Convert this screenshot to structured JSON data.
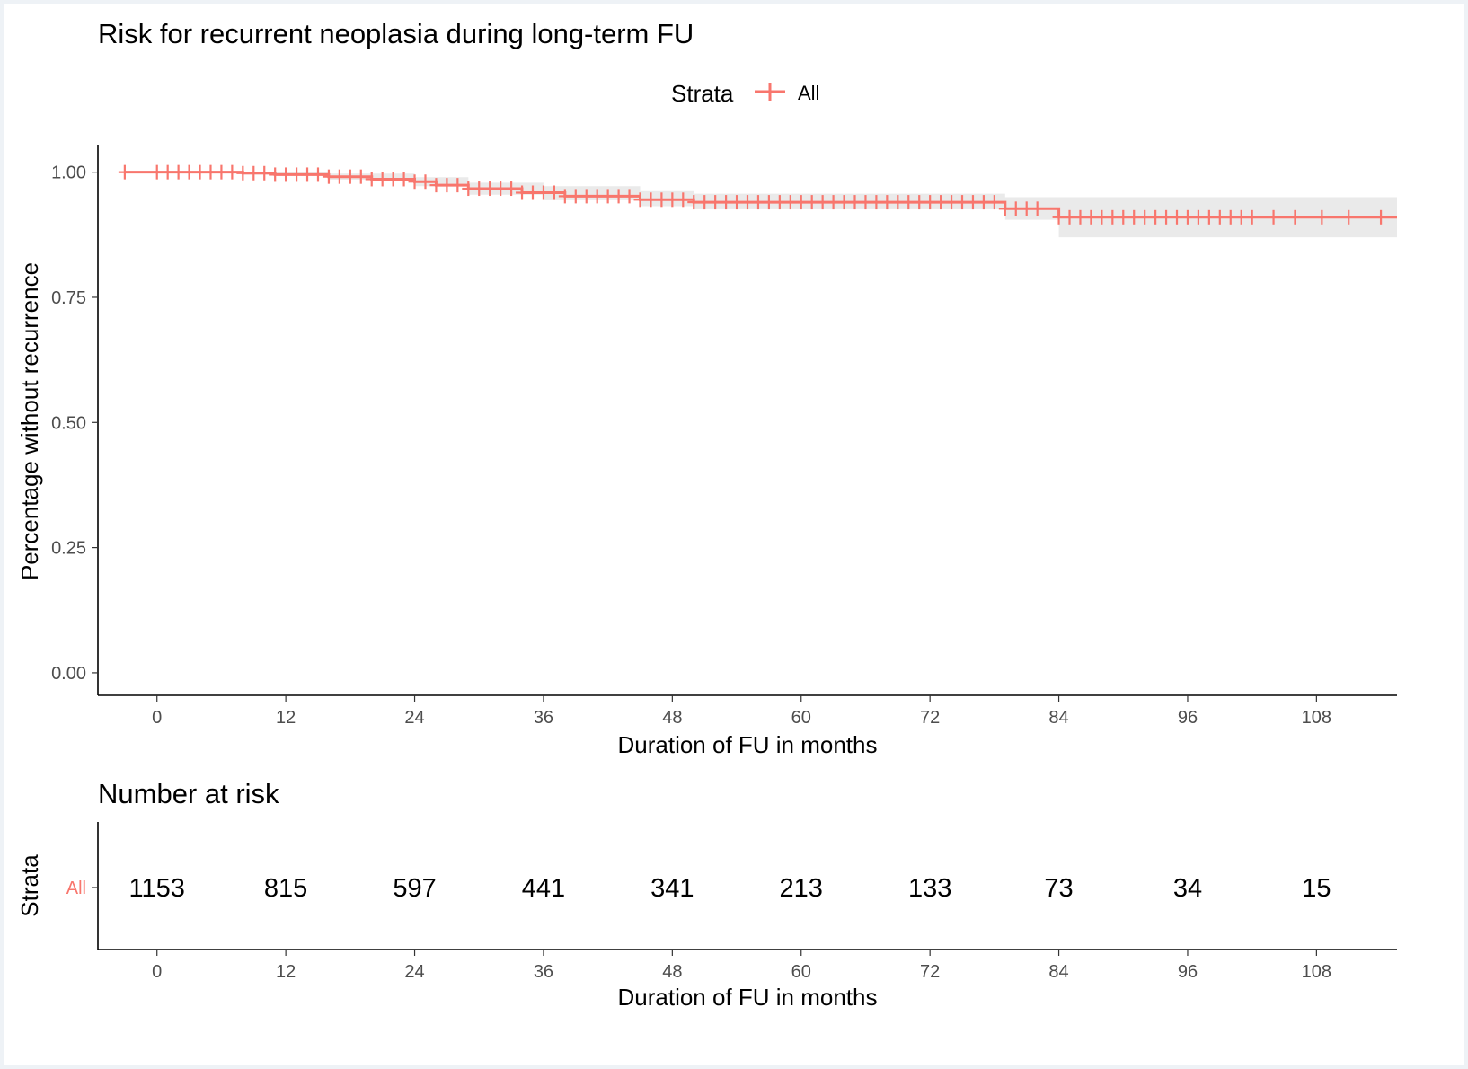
{
  "chart_data": [
    {
      "type": "line",
      "title": "Risk for recurrent neoplasia during long-term FU",
      "xlabel": "Duration of FU in months",
      "ylabel": "Percentage without recurrence",
      "xlim": [
        -5.5,
        115.5
      ],
      "ylim": [
        -0.045,
        1.055
      ],
      "x_ticks": [
        0,
        12,
        24,
        36,
        48,
        60,
        72,
        84,
        96,
        108
      ],
      "y_ticks": [
        0.0,
        0.25,
        0.5,
        0.75,
        1.0
      ],
      "y_tick_labels": [
        "0.00",
        "0.25",
        "0.50",
        "0.75",
        "1.00"
      ],
      "grid": false,
      "legend": {
        "title": "Strata",
        "position": "top"
      },
      "series": [
        {
          "name": "All",
          "color": "#f8766d",
          "survival_steps": [
            [
              -3,
              1.0
            ],
            [
              8,
              0.998
            ],
            [
              11,
              0.995
            ],
            [
              16,
              0.991
            ],
            [
              20,
              0.986
            ],
            [
              24,
              0.981
            ],
            [
              26,
              0.974
            ],
            [
              29,
              0.967
            ],
            [
              34,
              0.959
            ],
            [
              38,
              0.952
            ],
            [
              45,
              0.945
            ],
            [
              50,
              0.94
            ],
            [
              79,
              0.927
            ],
            [
              84,
              0.91
            ],
            [
              115.5,
              0.91
            ]
          ],
          "ci_band": [
            [
              -3,
              1.0,
              1.0
            ],
            [
              8,
              0.995,
              1.0
            ],
            [
              16,
              0.985,
              0.997
            ],
            [
              24,
              0.972,
              0.99
            ],
            [
              29,
              0.955,
              0.979
            ],
            [
              36,
              0.944,
              0.972
            ],
            [
              45,
              0.932,
              0.962
            ],
            [
              50,
              0.926,
              0.957
            ],
            [
              79,
              0.905,
              0.95
            ],
            [
              84,
              0.87,
              0.95
            ],
            [
              115.5,
              0.87,
              0.95
            ]
          ],
          "censor_marks": [
            -3,
            0,
            1,
            2,
            3,
            4,
            5,
            6,
            7,
            8,
            9,
            10,
            11,
            12,
            13,
            14,
            15,
            16,
            17,
            18,
            19,
            20,
            21,
            22,
            23,
            24,
            25,
            26,
            27,
            28,
            29,
            30,
            31,
            32,
            33,
            34,
            35,
            36,
            37,
            38,
            39,
            40,
            41,
            42,
            43,
            44,
            45,
            46,
            47,
            48,
            49,
            50,
            51,
            52,
            53,
            54,
            55,
            56,
            57,
            58,
            59,
            60,
            61,
            62,
            63,
            64,
            65,
            66,
            67,
            68,
            69,
            70,
            71,
            72,
            73,
            74,
            75,
            76,
            77,
            78,
            79,
            80,
            81,
            82,
            84,
            85,
            86,
            87,
            88,
            89,
            90,
            91,
            92,
            93,
            94,
            95,
            96,
            97,
            98,
            99,
            100,
            101,
            102,
            104,
            106,
            108.5,
            111,
            114
          ]
        }
      ]
    },
    {
      "type": "table",
      "title": "Number at risk",
      "xlabel": "Duration of FU in months",
      "ylabel": "Strata",
      "xlim": [
        -5.5,
        115.5
      ],
      "x_ticks": [
        0,
        12,
        24,
        36,
        48,
        60,
        72,
        84,
        96,
        108
      ],
      "rows": [
        {
          "label": "All",
          "color": "#f8766d",
          "values": [
            1153,
            815,
            597,
            441,
            341,
            213,
            133,
            73,
            34,
            15
          ]
        }
      ]
    }
  ]
}
